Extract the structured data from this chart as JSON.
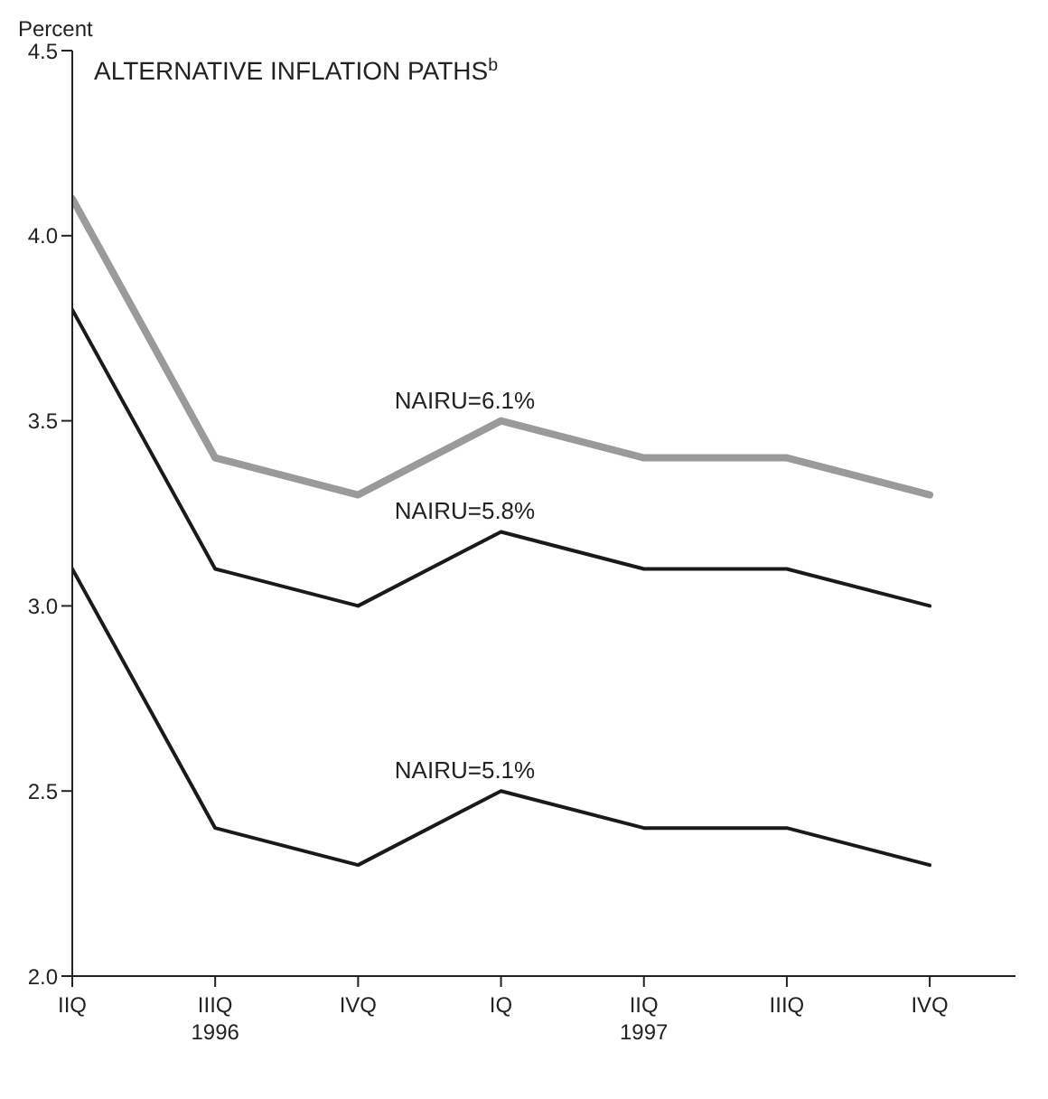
{
  "chart_data": {
    "type": "line",
    "title": "ALTERNATIVE INFLATION PATHS$^{b}$",
    "ylabel": "Percent",
    "categories": [
      "IIQ",
      "IIIQ\n1996",
      "IVQ",
      "IQ",
      "IIQ\n1997",
      "IIIQ",
      "IVQ"
    ],
    "series": [
      {
        "name": "NAIRU=6.1%",
        "color": "#9a9a9a",
        "values": [
          4.1,
          3.4,
          3.3,
          3.5,
          3.4,
          3.4,
          3.3
        ]
      },
      {
        "name": "NAIRU=5.8%",
        "color": "#1a1a1a",
        "values": [
          3.8,
          3.1,
          3.0,
          3.2,
          3.1,
          3.1,
          3.0
        ]
      },
      {
        "name": "NAIRU=5.1%",
        "color": "#1a1a1a",
        "values": [
          3.1,
          2.4,
          2.3,
          2.5,
          2.4,
          2.4,
          2.3
        ]
      }
    ],
    "ylim": [
      2.0,
      4.5
    ],
    "yticks": [
      {
        "value": 2.0,
        "label": "2.0"
      },
      {
        "value": 2.5,
        "label": "2.5"
      },
      {
        "value": 3.0,
        "label": "3.0"
      },
      {
        "value": 3.5,
        "label": "3.5"
      },
      {
        "value": 4.0,
        "label": "4.0"
      },
      {
        "value": 4.5,
        "label": "4.5"
      }
    ],
    "grid": false,
    "legend": false,
    "marker": "none",
    "line_style": "solid"
  }
}
